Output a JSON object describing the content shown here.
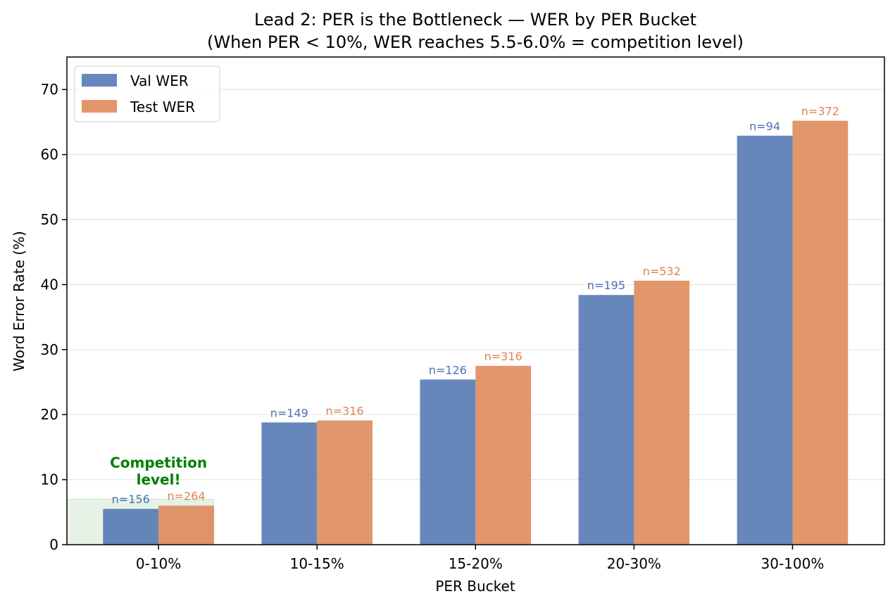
{
  "chart_data": {
    "type": "bar",
    "title": "Lead 2: PER is the Bottleneck — WER by PER Bucket",
    "subtitle": "(When PER < 10%, WER reaches 5.5-6.0% = competition level)",
    "xlabel": "PER Bucket",
    "ylabel": "Word Error Rate (%)",
    "categories": [
      "0-10%",
      "10-15%",
      "15-20%",
      "20-30%",
      "30-100%"
    ],
    "ylim": [
      0,
      75
    ],
    "yticks": [
      0,
      10,
      20,
      30,
      40,
      50,
      60,
      70
    ],
    "grid": "y",
    "legend_position": "top-left",
    "series": [
      {
        "name": "Val WER",
        "color": "#4C72B0",
        "values": [
          5.5,
          18.8,
          25.4,
          38.4,
          62.9
        ],
        "labels": [
          "n=156",
          "n=149",
          "n=126",
          "n=195",
          "n=94"
        ]
      },
      {
        "name": "Test WER",
        "color": "#DD8452",
        "values": [
          6.0,
          19.1,
          27.5,
          40.6,
          65.2
        ],
        "labels": [
          "n=264",
          "n=316",
          "n=316",
          "n=532",
          "n=372"
        ]
      }
    ],
    "highlight": {
      "label": "Competition\nlevel!",
      "ymax": 7,
      "color": "#008000"
    }
  }
}
